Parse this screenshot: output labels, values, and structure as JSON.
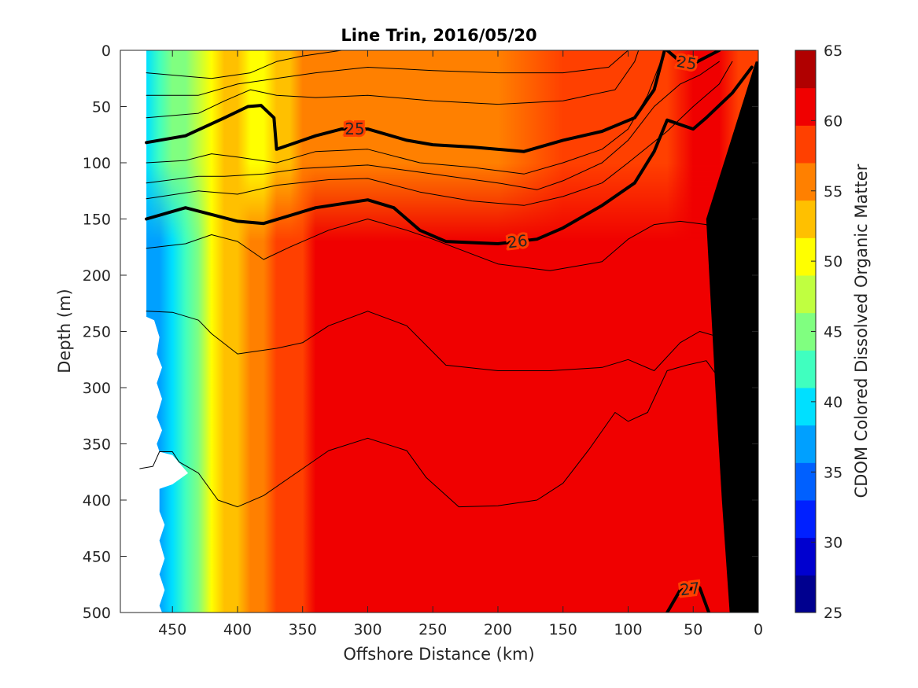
{
  "chart_data": {
    "type": "contour",
    "title": "Line Trin, 2016/05/20",
    "xlabel": "Offshore Distance (km)",
    "ylabel": "Depth (m)",
    "colorbar_label": "CDOM Colored Dissolved Organic Matter",
    "x_reversed": true,
    "y_reversed": true,
    "xlim": [
      0,
      490
    ],
    "ylim": [
      0,
      500
    ],
    "x_ticks": [
      "450",
      "400",
      "350",
      "300",
      "250",
      "200",
      "150",
      "100",
      "50",
      "0"
    ],
    "x_tick_values": [
      450,
      400,
      350,
      300,
      250,
      200,
      150,
      100,
      50,
      0
    ],
    "y_ticks": [
      "0",
      "50",
      "100",
      "150",
      "200",
      "250",
      "300",
      "350",
      "400",
      "450",
      "500"
    ],
    "y_tick_values": [
      0,
      50,
      100,
      150,
      200,
      250,
      300,
      350,
      400,
      450,
      500
    ],
    "colorbar": {
      "ticks": [
        "25",
        "30",
        "35",
        "40",
        "45",
        "50",
        "55",
        "60",
        "65"
      ],
      "range": [
        25,
        65
      ],
      "colors": [
        "#00008f",
        "#0000cf",
        "#0020ff",
        "#0060ff",
        "#00a0ff",
        "#00e0ff",
        "#40ffbf",
        "#80ff80",
        "#c0ff40",
        "#ffff00",
        "#ffc000",
        "#ff8000",
        "#ff4000",
        "#f00000",
        "#b00000"
      ]
    },
    "field_profile_by_distance": {
      "distance_km": [
        470,
        460,
        450,
        440,
        430,
        420,
        410,
        400,
        390,
        380,
        370,
        360,
        350,
        340,
        320,
        300,
        250,
        200,
        150,
        100,
        70,
        50,
        30,
        15
      ],
      "value_at_0_to_150m": [
        40,
        42,
        44,
        46,
        48,
        50,
        52,
        52,
        51,
        51,
        52,
        54,
        55,
        55,
        55,
        55,
        56,
        56,
        57,
        58,
        59,
        60,
        60,
        59
      ],
      "value_at_150_to_500m": [
        36,
        38,
        40,
        43,
        46,
        49,
        52,
        54,
        55,
        56,
        57,
        58,
        59,
        60,
        60,
        61,
        61,
        61,
        61,
        61,
        62,
        62,
        61,
        60
      ]
    },
    "contours": [
      {
        "label": "25",
        "style": "bold",
        "points": [
          [
            470,
            82
          ],
          [
            440,
            76
          ],
          [
            410,
            60
          ],
          [
            392,
            50
          ],
          [
            382,
            49
          ],
          [
            372,
            60
          ],
          [
            370,
            88
          ],
          [
            360,
            84
          ],
          [
            340,
            76
          ],
          [
            320,
            70
          ],
          [
            300,
            70
          ],
          [
            270,
            80
          ],
          [
            250,
            84
          ],
          [
            220,
            86
          ],
          [
            180,
            90
          ],
          [
            150,
            80
          ],
          [
            120,
            72
          ],
          [
            95,
            60
          ],
          [
            80,
            35
          ],
          [
            72,
            0
          ]
        ]
      },
      {
        "label": "25",
        "style": "bold",
        "points": [
          [
            70,
            0
          ],
          [
            60,
            10
          ],
          [
            50,
            12
          ],
          [
            30,
            0
          ]
        ]
      },
      {
        "label": "26",
        "style": "bold",
        "points": [
          [
            470,
            150
          ],
          [
            440,
            140
          ],
          [
            420,
            146
          ],
          [
            400,
            152
          ],
          [
            380,
            154
          ],
          [
            340,
            140
          ],
          [
            300,
            133
          ],
          [
            280,
            140
          ],
          [
            260,
            160
          ],
          [
            240,
            170
          ],
          [
            200,
            172
          ],
          [
            170,
            168
          ],
          [
            150,
            158
          ],
          [
            120,
            138
          ],
          [
            95,
            118
          ],
          [
            80,
            90
          ],
          [
            70,
            62
          ],
          [
            50,
            70
          ],
          [
            40,
            60
          ],
          [
            20,
            38
          ],
          [
            5,
            15
          ]
        ]
      },
      {
        "label": "27",
        "style": "bold",
        "points": [
          [
            70,
            500
          ],
          [
            60,
            480
          ],
          [
            45,
            478
          ],
          [
            38,
            500
          ]
        ]
      },
      {
        "label": "",
        "style": "thin",
        "points": [
          [
            470,
            20
          ],
          [
            420,
            25
          ],
          [
            390,
            20
          ],
          [
            370,
            10
          ],
          [
            350,
            5
          ],
          [
            320,
            0
          ]
        ]
      },
      {
        "label": "",
        "style": "thin",
        "points": [
          [
            470,
            40
          ],
          [
            430,
            40
          ],
          [
            400,
            30
          ],
          [
            370,
            25
          ],
          [
            340,
            20
          ],
          [
            300,
            15
          ],
          [
            250,
            18
          ],
          [
            200,
            20
          ],
          [
            150,
            20
          ],
          [
            115,
            15
          ],
          [
            100,
            0
          ]
        ]
      },
      {
        "label": "",
        "style": "thin",
        "points": [
          [
            470,
            60
          ],
          [
            430,
            56
          ],
          [
            410,
            45
          ],
          [
            390,
            35
          ],
          [
            370,
            40
          ],
          [
            340,
            42
          ],
          [
            300,
            40
          ],
          [
            250,
            45
          ],
          [
            200,
            48
          ],
          [
            150,
            45
          ],
          [
            110,
            35
          ],
          [
            95,
            10
          ],
          [
            92,
            0
          ]
        ]
      },
      {
        "label": "",
        "style": "thin",
        "points": [
          [
            470,
            100
          ],
          [
            440,
            98
          ],
          [
            420,
            92
          ],
          [
            400,
            95
          ],
          [
            370,
            100
          ],
          [
            340,
            90
          ],
          [
            300,
            88
          ],
          [
            260,
            100
          ],
          [
            220,
            104
          ],
          [
            180,
            110
          ],
          [
            150,
            100
          ],
          [
            120,
            88
          ],
          [
            100,
            70
          ],
          [
            85,
            40
          ],
          [
            75,
            10
          ]
        ]
      },
      {
        "label": "",
        "style": "thin",
        "points": [
          [
            470,
            118
          ],
          [
            430,
            112
          ],
          [
            410,
            112
          ],
          [
            380,
            110
          ],
          [
            350,
            105
          ],
          [
            300,
            102
          ],
          [
            250,
            110
          ],
          [
            200,
            118
          ],
          [
            170,
            124
          ],
          [
            150,
            116
          ],
          [
            120,
            100
          ],
          [
            100,
            80
          ],
          [
            80,
            50
          ],
          [
            60,
            30
          ],
          [
            45,
            22
          ],
          [
            30,
            10
          ]
        ]
      },
      {
        "label": "",
        "style": "thin",
        "points": [
          [
            470,
            132
          ],
          [
            430,
            125
          ],
          [
            400,
            128
          ],
          [
            370,
            120
          ],
          [
            330,
            115
          ],
          [
            300,
            114
          ],
          [
            260,
            126
          ],
          [
            220,
            134
          ],
          [
            180,
            138
          ],
          [
            150,
            130
          ],
          [
            120,
            118
          ],
          [
            100,
            100
          ],
          [
            70,
            72
          ],
          [
            50,
            50
          ],
          [
            30,
            30
          ],
          [
            20,
            10
          ]
        ]
      },
      {
        "label": "",
        "style": "thin",
        "points": [
          [
            470,
            176
          ],
          [
            440,
            172
          ],
          [
            420,
            164
          ],
          [
            400,
            170
          ],
          [
            380,
            186
          ],
          [
            360,
            175
          ],
          [
            330,
            160
          ],
          [
            300,
            150
          ],
          [
            270,
            160
          ],
          [
            250,
            168
          ],
          [
            200,
            190
          ],
          [
            160,
            196
          ],
          [
            120,
            188
          ],
          [
            100,
            168
          ],
          [
            80,
            155
          ],
          [
            60,
            152
          ],
          [
            40,
            155
          ],
          [
            20,
            180
          ]
        ]
      },
      {
        "label": "",
        "style": "thin",
        "points": [
          [
            470,
            232
          ],
          [
            450,
            233
          ],
          [
            430,
            240
          ],
          [
            420,
            252
          ],
          [
            400,
            270
          ],
          [
            370,
            265
          ],
          [
            350,
            260
          ],
          [
            330,
            245
          ],
          [
            300,
            232
          ],
          [
            270,
            245
          ],
          [
            240,
            280
          ],
          [
            200,
            285
          ],
          [
            160,
            285
          ],
          [
            120,
            282
          ],
          [
            100,
            275
          ],
          [
            80,
            285
          ],
          [
            60,
            260
          ],
          [
            45,
            250
          ],
          [
            30,
            255
          ],
          [
            15,
            265
          ]
        ]
      },
      {
        "label": "",
        "style": "thin",
        "points": [
          [
            475,
            372
          ],
          [
            465,
            370
          ],
          [
            460,
            357
          ],
          [
            450,
            357
          ],
          [
            445,
            366
          ],
          [
            430,
            376
          ],
          [
            415,
            400
          ],
          [
            400,
            406
          ],
          [
            380,
            396
          ],
          [
            360,
            380
          ],
          [
            330,
            356
          ],
          [
            300,
            345
          ],
          [
            270,
            356
          ],
          [
            255,
            380
          ],
          [
            230,
            406
          ],
          [
            200,
            405
          ],
          [
            170,
            400
          ],
          [
            150,
            385
          ],
          [
            130,
            355
          ],
          [
            110,
            322
          ],
          [
            100,
            330
          ],
          [
            85,
            322
          ],
          [
            70,
            285
          ],
          [
            55,
            280
          ],
          [
            40,
            276
          ],
          [
            25,
            300
          ],
          [
            15,
            320
          ]
        ]
      }
    ],
    "land_mask": {
      "points": [
        [
          0,
          10
        ],
        [
          0,
          500
        ],
        [
          22,
          500
        ],
        [
          28,
          400
        ],
        [
          33,
          300
        ],
        [
          40,
          150
        ],
        [
          2,
          10
        ]
      ]
    },
    "no_data_mask_west_edge": {
      "points": [
        [
          490,
          0
        ],
        [
          470,
          0
        ],
        [
          470,
          237
        ],
        [
          464,
          240
        ],
        [
          460,
          255
        ],
        [
          462,
          270
        ],
        [
          458,
          282
        ],
        [
          462,
          296
        ],
        [
          458,
          310
        ],
        [
          462,
          326
        ],
        [
          458,
          338
        ],
        [
          462,
          350
        ],
        [
          460,
          357
        ],
        [
          450,
          360
        ],
        [
          438,
          376
        ],
        [
          450,
          386
        ],
        [
          460,
          390
        ],
        [
          460,
          410
        ],
        [
          456,
          422
        ],
        [
          460,
          436
        ],
        [
          456,
          452
        ],
        [
          460,
          466
        ],
        [
          456,
          480
        ],
        [
          460,
          494
        ],
        [
          458,
          500
        ],
        [
          490,
          500
        ]
      ]
    }
  }
}
